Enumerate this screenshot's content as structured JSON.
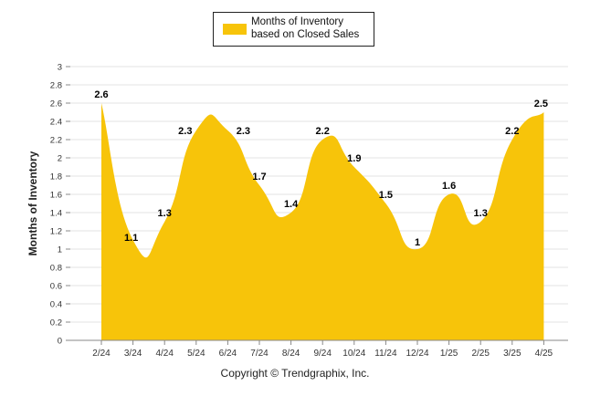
{
  "legend": {
    "label": "Months of Inventory based on Closed Sales"
  },
  "copyright": "Copyright © Trendgraphix, Inc.",
  "colors": {
    "area": "#f7c40a",
    "grid": "#e3e3e3",
    "axis": "#888888",
    "text": "#111111"
  },
  "chart_data": {
    "type": "area",
    "title": "",
    "xlabel": "",
    "ylabel": "Months of Inventory",
    "ylim": [
      0,
      3
    ],
    "yticks": [
      "0",
      "0.2",
      "0.4",
      "0.6",
      "0.8",
      "1",
      "1.2",
      "1.4",
      "1.6",
      "1.8",
      "2",
      "2.2",
      "2.4",
      "2.6",
      "2.8",
      "3"
    ],
    "categories": [
      "2/24",
      "3/24",
      "4/24",
      "5/24",
      "6/24",
      "7/24",
      "8/24",
      "9/24",
      "10/24",
      "11/24",
      "12/24",
      "1/25",
      "2/25",
      "3/25",
      "4/25"
    ],
    "series": [
      {
        "name": "Months of Inventory based on Closed Sales",
        "values": [
          2.6,
          1.1,
          1.3,
          2.3,
          2.3,
          1.7,
          1.4,
          2.2,
          1.9,
          1.5,
          1,
          1.6,
          1.3,
          2.2,
          2.5
        ],
        "labels": [
          "2.6",
          "1.1",
          "1.3",
          "2.3",
          "2.3",
          "1.7",
          "1.4",
          "2.2",
          "1.9",
          "1.5",
          "1",
          "1.6",
          "1.3",
          "2.2",
          "2.5"
        ]
      }
    ],
    "grid": true,
    "legend_position": "top-center"
  }
}
